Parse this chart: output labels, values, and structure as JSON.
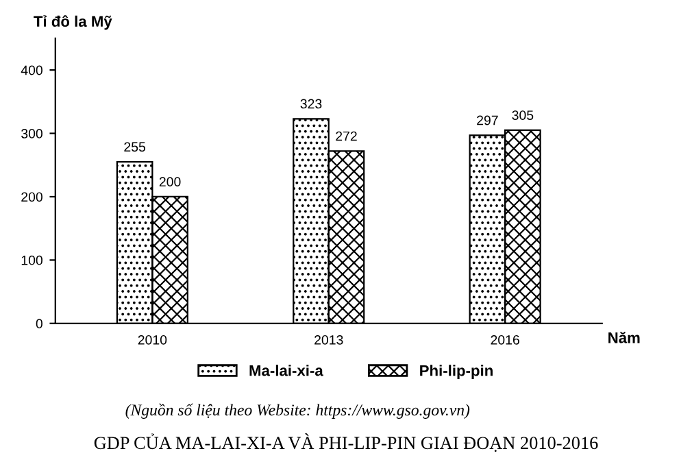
{
  "chart_data": {
    "type": "bar",
    "title": "GDP CỦA MA-LAI-XI-A VÀ PHI-LIP-PIN GIAI ĐOẠN 2010-2016",
    "ylabel": "Tỉ đô la Mỹ",
    "xlabel": "Năm",
    "annotations": [
      "(Nguồn số liệu theo Website: https://www.gso.gov.vn)"
    ],
    "categories": [
      "2010",
      "2013",
      "2016"
    ],
    "series": [
      {
        "name": "Ma-lai-xi-a",
        "color": "#000000",
        "values": [
          255,
          323,
          297
        ]
      },
      {
        "name": "Phi-lip-pin",
        "color": "#000000",
        "values": [
          200,
          272,
          305
        ]
      }
    ],
    "ylim": [
      0,
      450
    ],
    "yticks": [
      0,
      100,
      200,
      300,
      400
    ],
    "grid": false,
    "legend": "bottom",
    "data_labels": true
  }
}
